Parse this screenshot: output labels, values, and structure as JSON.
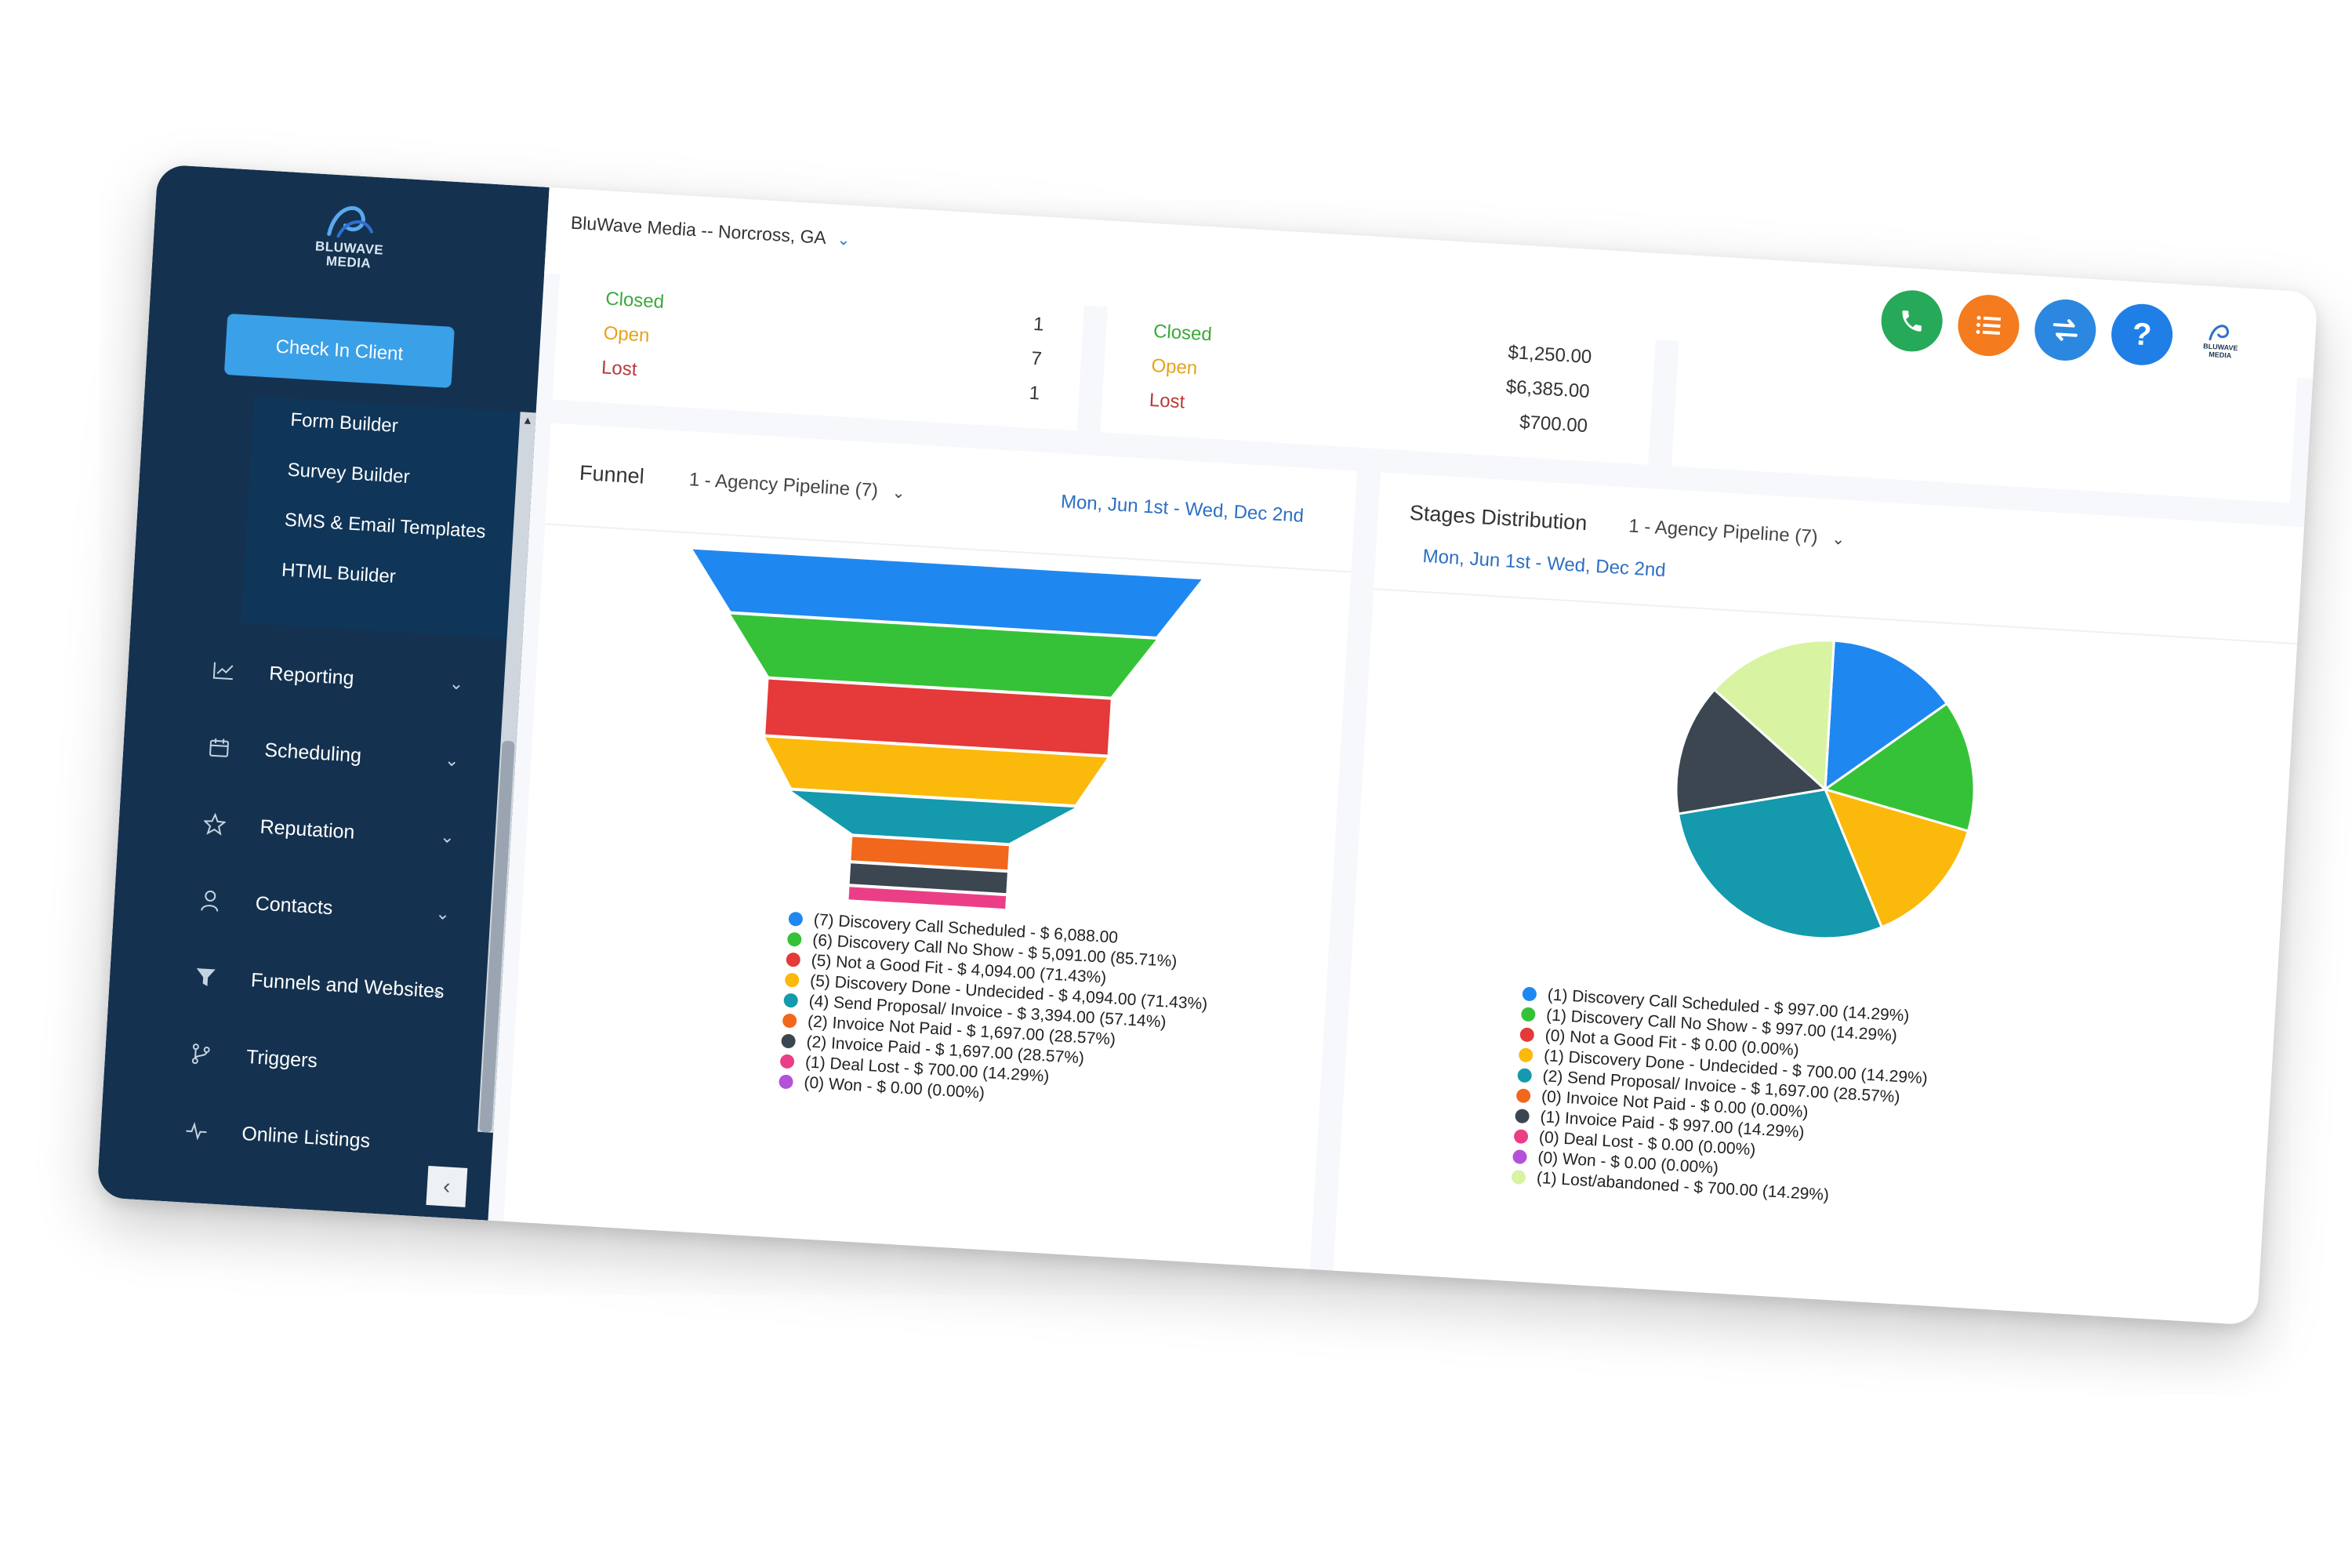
{
  "app": {
    "logo_text": "BLUWAVE MEDIA",
    "location": "BluWave Media -- Norcross, GA"
  },
  "sidebar": {
    "check_in_label": "Check In Client",
    "submenu": [
      "Form Builder",
      "Survey Builder",
      "SMS & Email Templates",
      "HTML Builder"
    ],
    "items": [
      {
        "label": "Reporting",
        "icon": "chart-icon"
      },
      {
        "label": "Scheduling",
        "icon": "calendar-icon"
      },
      {
        "label": "Reputation",
        "icon": "star-icon"
      },
      {
        "label": "Contacts",
        "icon": "person-icon"
      },
      {
        "label": "Funnels and Websites",
        "icon": "filter-icon"
      },
      {
        "label": "Triggers",
        "icon": "branch-icon"
      },
      {
        "label": "Online Listings",
        "icon": "pulse-icon"
      }
    ]
  },
  "topbar": {
    "help_label": "?",
    "buttons": [
      "phone-icon",
      "list-icon",
      "swap-icon",
      "help-icon"
    ]
  },
  "stats": [
    {
      "rows": [
        {
          "name": "Closed",
          "value": "1"
        },
        {
          "name": "Open",
          "value": "7"
        },
        {
          "name": "Lost",
          "value": "1"
        }
      ]
    },
    {
      "rows": [
        {
          "name": "Closed",
          "value": "$1,250.00"
        },
        {
          "name": "Open",
          "value": "$6,385.00"
        },
        {
          "name": "Lost",
          "value": "$700.00"
        }
      ]
    }
  ],
  "funnel_panel": {
    "title": "Funnel",
    "pipeline": "1 - Agency Pipeline (7)",
    "date_range": "Mon, Jun 1st - Wed, Dec 2nd"
  },
  "stages_panel": {
    "title": "Stages Distribution",
    "pipeline": "1 - Agency Pipeline (7)",
    "date_range": "Mon, Jun 1st - Wed, Dec 2nd"
  },
  "colors": {
    "blue": "#1f88f0",
    "green": "#36c238",
    "red": "#e5393a",
    "amber": "#fbb90c",
    "teal": "#1499ad",
    "orange": "#f1671b",
    "charcoal": "#3c4650",
    "pink": "#ec3e86",
    "purple": "#b352d8",
    "lightgreen": "#d8f3a2"
  },
  "chart_data": [
    {
      "type": "funnel",
      "categories": [
        "Discovery Call Scheduled",
        "Discovery Call No Show",
        "Not a Good Fit",
        "Discovery Done - Undecided",
        "Send Proposal/ Invoice",
        "Invoice Not Paid",
        "Invoice Paid",
        "Deal Lost",
        "Won"
      ],
      "counts": [
        7,
        6,
        5,
        5,
        4,
        2,
        2,
        1,
        0
      ],
      "values": [
        6088.0,
        5091.0,
        4094.0,
        4094.0,
        3394.0,
        1697.0,
        1697.0,
        700.0,
        0.0
      ],
      "legend": [
        "(7) Discovery Call Scheduled - $ 6,088.00",
        "(6) Discovery Call No Show - $ 5,091.00 (85.71%)",
        "(5) Not a Good Fit - $ 4,094.00 (71.43%)",
        "(5) Discovery Done - Undecided - $ 4,094.00 (71.43%)",
        "(4) Send Proposal/ Invoice - $ 3,394.00 (57.14%)",
        "(2) Invoice Not Paid - $ 1,697.00 (28.57%)",
        "(2) Invoice Paid - $ 1,697.00 (28.57%)",
        "(1) Deal Lost - $ 700.00 (14.29%)",
        "(0) Won - $ 0.00 (0.00%)"
      ],
      "colors": [
        "#1f88f0",
        "#36c238",
        "#e5393a",
        "#fbb90c",
        "#1499ad",
        "#f1671b",
        "#3c4650",
        "#ec3e86",
        "#b352d8"
      ]
    },
    {
      "type": "pie",
      "categories": [
        "Discovery Call Scheduled",
        "Discovery Call No Show",
        "Not a Good Fit",
        "Discovery Done - Undecided",
        "Send Proposal/ Invoice",
        "Invoice Not Paid",
        "Invoice Paid",
        "Deal Lost",
        "Won",
        "Lost/abandoned"
      ],
      "counts": [
        1,
        1,
        0,
        1,
        2,
        0,
        1,
        0,
        0,
        1
      ],
      "legend": [
        "(1) Discovery Call Scheduled - $ 997.00 (14.29%)",
        "(1) Discovery Call No Show - $ 997.00 (14.29%)",
        "(0) Not a Good Fit - $ 0.00 (0.00%)",
        "(1) Discovery Done - Undecided - $ 700.00 (14.29%)",
        "(2) Send Proposal/ Invoice - $ 1,697.00 (28.57%)",
        "(0) Invoice Not Paid - $ 0.00 (0.00%)",
        "(1) Invoice Paid - $ 997.00 (14.29%)",
        "(0) Deal Lost - $ 0.00 (0.00%)",
        "(0) Won - $ 0.00 (0.00%)",
        "(1) Lost/abandoned - $ 700.00 (14.29%)"
      ],
      "colors": [
        "#1f88f0",
        "#36c238",
        "#e5393a",
        "#fbb90c",
        "#1499ad",
        "#f1671b",
        "#3c4650",
        "#ec3e86",
        "#b352d8",
        "#d8f3a2"
      ]
    }
  ]
}
